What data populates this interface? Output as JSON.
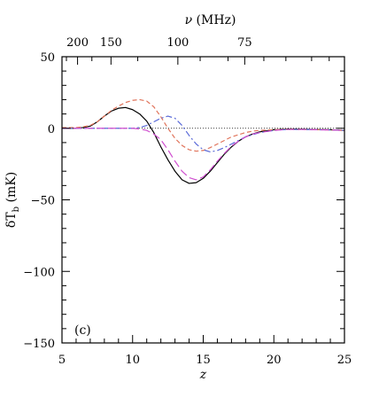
{
  "chart_data": {
    "type": "line",
    "panel_label": "(c)",
    "xlabel": "z",
    "ylabel_main": "δT",
    "ylabel_sub": "b",
    "ylabel_unit": " (mK)",
    "top_axis_label_symbol": "ν",
    "top_axis_label_unit": " (MHz)",
    "xlim": [
      5,
      25
    ],
    "ylim": [
      -150,
      50
    ],
    "x_ticks": [
      5,
      10,
      15,
      20,
      25
    ],
    "y_ticks": [
      50,
      0,
      -50,
      -100,
      -150
    ],
    "y_tick_labels": [
      "50",
      "0",
      "−50",
      "−100",
      "−150"
    ],
    "top_ticks": [
      {
        "label": "200",
        "freq_mhz": 200
      },
      {
        "label": "150",
        "freq_mhz": 150
      },
      {
        "label": "100",
        "freq_mhz": 100
      },
      {
        "label": "75",
        "freq_mhz": 75
      }
    ],
    "top_minor_ticks_mhz": [
      225,
      200,
      175,
      150,
      125,
      100,
      90,
      80,
      75,
      70,
      65,
      60,
      57
    ],
    "reference_line_y": 0,
    "series": [
      {
        "style": "solid",
        "color": "#000000",
        "x": [
          5,
          6,
          6.5,
          7,
          7.5,
          8,
          8.5,
          9,
          9.5,
          10,
          10.5,
          11,
          11.5,
          12,
          12.5,
          13,
          13.5,
          14,
          14.5,
          15,
          15.5,
          16,
          16.5,
          17,
          17.5,
          18,
          18.5,
          19,
          20,
          21,
          22,
          23,
          24,
          25
        ],
        "y": [
          0,
          0,
          0.5,
          1.5,
          4.5,
          8.5,
          12,
          14,
          14.5,
          13,
          10,
          5,
          -3,
          -13,
          -22,
          -30,
          -36,
          -38.5,
          -38,
          -35,
          -30,
          -24,
          -18,
          -13,
          -9,
          -6,
          -4,
          -2.5,
          -1,
          -0.5,
          -0.6,
          -0.8,
          -1,
          -1.5
        ]
      },
      {
        "style": "dashed",
        "color": "#e0735a",
        "x": [
          5,
          6,
          6.5,
          7,
          7.5,
          8,
          8.5,
          9,
          9.5,
          10,
          10.5,
          11,
          11.5,
          12,
          12.5,
          13,
          13.5,
          14,
          14.5,
          15,
          15.5,
          16,
          16.5,
          17,
          17.5,
          18,
          18.5,
          19,
          20,
          21,
          22,
          23,
          24,
          25
        ],
        "y": [
          0.5,
          0.5,
          1,
          2,
          4.5,
          8.5,
          12.5,
          15.5,
          18,
          19.5,
          20,
          19,
          15,
          8,
          0,
          -7,
          -12,
          -15,
          -16,
          -15.5,
          -13.5,
          -11,
          -8.5,
          -6,
          -4.5,
          -3,
          -2,
          -1.5,
          -1,
          -0.7,
          -0.8,
          -1,
          -1.2,
          -1.5
        ]
      },
      {
        "style": "dash-dot",
        "color": "#5a6ad8",
        "x": [
          5,
          7,
          8,
          9,
          10,
          10.5,
          11,
          11.5,
          12,
          12.5,
          13,
          13.5,
          14,
          14.5,
          15,
          15.5,
          16,
          16.5,
          17,
          17.5,
          18,
          18.5,
          19,
          20,
          21,
          22,
          23,
          24,
          25
        ],
        "y": [
          0,
          0,
          0,
          0,
          0,
          0.5,
          2,
          4.5,
          7,
          8.5,
          7,
          2,
          -5,
          -11,
          -15,
          -16.5,
          -15.5,
          -13.5,
          -11,
          -8.5,
          -6,
          -4.5,
          -3,
          -1.5,
          -0.8,
          -0.8,
          -1,
          -1.2,
          -1.5
        ]
      },
      {
        "style": "long-dash",
        "color": "#d050d0",
        "x": [
          5,
          8,
          9,
          10,
          10.5,
          11,
          11.5,
          12,
          12.5,
          13,
          13.5,
          14,
          14.5,
          15,
          15.5,
          16,
          16.5,
          17,
          17.5,
          18,
          18.5,
          19,
          20,
          21,
          22,
          23,
          24,
          25
        ],
        "y": [
          0,
          0,
          0,
          0,
          -0.5,
          -1.5,
          -4,
          -8,
          -15,
          -23,
          -30,
          -34.5,
          -36,
          -34,
          -29,
          -23,
          -17.5,
          -12.5,
          -9,
          -6,
          -4,
          -3,
          -1.5,
          -0.8,
          -0.8,
          -1,
          -1.2,
          -1.5
        ]
      }
    ]
  }
}
